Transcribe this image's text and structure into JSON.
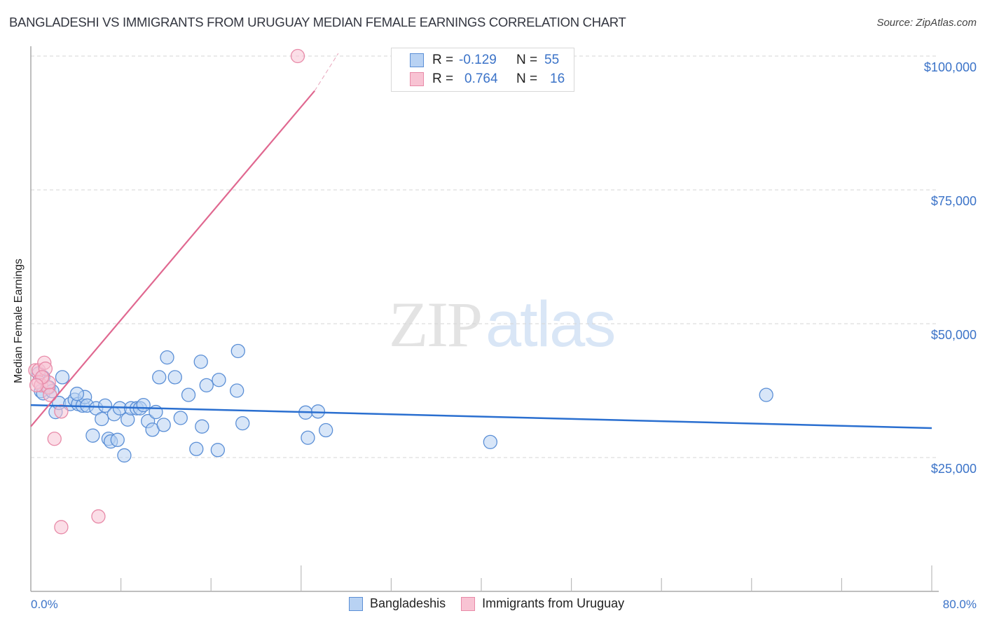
{
  "header": {
    "title": "BANGLADESHI VS IMMIGRANTS FROM URUGUAY MEDIAN FEMALE EARNINGS CORRELATION CHART",
    "source": "Source: ZipAtlas.com"
  },
  "watermark": {
    "zip": "ZIP",
    "atlas": "atlas"
  },
  "axes": {
    "ylabel": "Median Female Earnings",
    "yticks": [
      "$100,000",
      "$75,000",
      "$50,000",
      "$25,000"
    ],
    "xmin_label": "0.0%",
    "xmax_label": "80.0%"
  },
  "legend_top": {
    "rows": [
      {
        "r_label": "R =",
        "r_value": "-0.129",
        "n_label": "N =",
        "n_value": "55"
      },
      {
        "r_label": "R =",
        "r_value": "0.764",
        "n_label": "N =",
        "n_value": "16"
      }
    ]
  },
  "legend_bottom": {
    "items": [
      {
        "label": "Bangladeshis"
      },
      {
        "label": "Immigrants from Uruguay"
      }
    ]
  },
  "colors": {
    "blue_fill": "#b8d2f3",
    "blue_stroke": "#5b8fd6",
    "blue_line": "#2a6fd0",
    "pink_fill": "#f8c3d3",
    "pink_stroke": "#e88aa8",
    "pink_line": "#e06890",
    "axis_label": "#3b73c8"
  },
  "chart_data": {
    "type": "scatter",
    "title": "BANGLADESHI VS IMMIGRANTS FROM URUGUAY MEDIAN FEMALE EARNINGS CORRELATION CHART",
    "xlabel": "",
    "ylabel": "Median Female Earnings",
    "xlim": [
      0,
      80
    ],
    "ylim": [
      0,
      102000
    ],
    "x_unit": "%",
    "yticks": [
      25000,
      50000,
      75000,
      100000
    ],
    "grid": "horizontal dashed",
    "legend_position": "top-center and bottom",
    "series": [
      {
        "name": "Bangladeshis",
        "R": -0.129,
        "N": 55,
        "trend": {
          "x": [
            0,
            80
          ],
          "y": [
            34800,
            30500
          ]
        },
        "points": [
          [
            0.7,
            40700
          ],
          [
            0.9,
            37400
          ],
          [
            1.1,
            37000
          ],
          [
            1.6,
            38100
          ],
          [
            1.9,
            37400
          ],
          [
            2.2,
            33500
          ],
          [
            2.5,
            35200
          ],
          [
            2.8,
            40000
          ],
          [
            3.5,
            35000
          ],
          [
            3.9,
            35800
          ],
          [
            4.2,
            35000
          ],
          [
            4.6,
            34700
          ],
          [
            4.8,
            36300
          ],
          [
            5.0,
            34700
          ],
          [
            5.5,
            29100
          ],
          [
            5.8,
            34200
          ],
          [
            6.3,
            32200
          ],
          [
            6.6,
            34700
          ],
          [
            6.9,
            28500
          ],
          [
            7.1,
            28000
          ],
          [
            7.4,
            33100
          ],
          [
            7.7,
            28300
          ],
          [
            7.9,
            34200
          ],
          [
            8.3,
            25400
          ],
          [
            8.6,
            32100
          ],
          [
            8.9,
            34200
          ],
          [
            9.4,
            34200
          ],
          [
            9.7,
            34200
          ],
          [
            10.0,
            34800
          ],
          [
            10.4,
            31800
          ],
          [
            10.8,
            30200
          ],
          [
            11.1,
            33500
          ],
          [
            11.4,
            40000
          ],
          [
            11.8,
            31100
          ],
          [
            12.1,
            43700
          ],
          [
            12.8,
            40000
          ],
          [
            13.3,
            32400
          ],
          [
            14.0,
            36700
          ],
          [
            14.7,
            26600
          ],
          [
            15.1,
            42900
          ],
          [
            15.2,
            30800
          ],
          [
            15.6,
            38500
          ],
          [
            16.6,
            26400
          ],
          [
            16.7,
            39500
          ],
          [
            18.3,
            37500
          ],
          [
            18.4,
            44900
          ],
          [
            18.8,
            31400
          ],
          [
            24.4,
            33400
          ],
          [
            24.6,
            28700
          ],
          [
            25.5,
            33600
          ],
          [
            26.2,
            30100
          ],
          [
            40.8,
            27900
          ],
          [
            65.3,
            36700
          ],
          [
            1.1,
            40000
          ],
          [
            4.1,
            36900
          ]
        ]
      },
      {
        "name": "Immigrants from Uruguay",
        "R": 0.764,
        "N": 16,
        "trend": {
          "x": [
            0,
            25.2
          ],
          "y": [
            30800,
            93500
          ],
          "dashed_extension_to": [
            27.3,
            100500
          ]
        },
        "points": [
          [
            0.4,
            41300
          ],
          [
            0.7,
            41300
          ],
          [
            0.7,
            39100
          ],
          [
            0.9,
            38500
          ],
          [
            1.2,
            42700
          ],
          [
            1.5,
            38100
          ],
          [
            1.6,
            39000
          ],
          [
            1.7,
            36700
          ],
          [
            1.3,
            41600
          ],
          [
            2.1,
            28500
          ],
          [
            2.7,
            33600
          ],
          [
            2.7,
            12000
          ],
          [
            6.0,
            14000
          ],
          [
            23.7,
            100000
          ],
          [
            1.0,
            40000
          ],
          [
            0.5,
            38500
          ]
        ]
      }
    ]
  }
}
